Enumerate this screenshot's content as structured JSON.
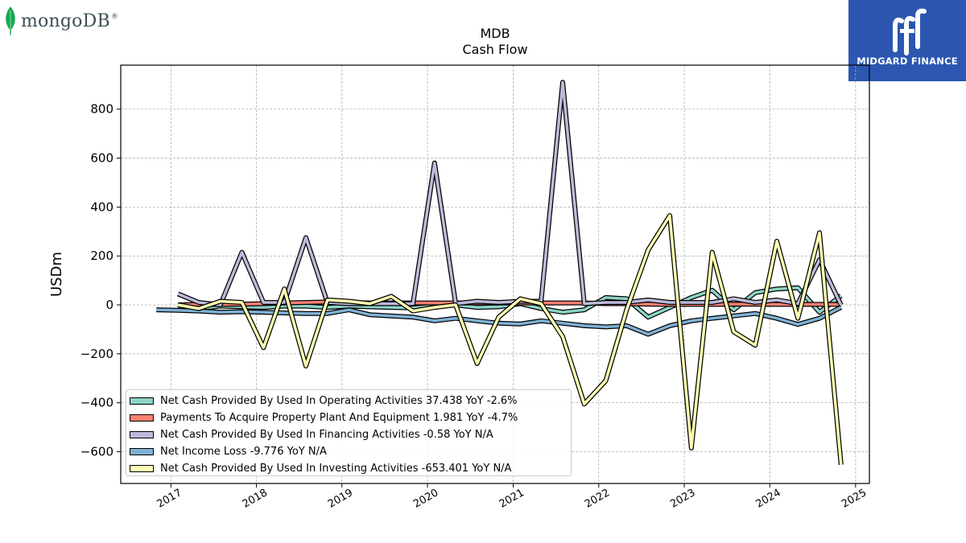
{
  "brand_left": {
    "wordmark": "mongoDB",
    "registered": "®",
    "icon": "leaf-icon",
    "icon_color": "#13aa52"
  },
  "brand_right": {
    "name": "MIDGARD FINANCE",
    "background": "#2b57b0"
  },
  "chart_data": {
    "type": "line",
    "title": "MDB",
    "subtitle": "Cash Flow",
    "xlabel": "",
    "ylabel": "USDm",
    "xlim": [
      "2016-06-01",
      "2025-03-01"
    ],
    "ylim": [
      -730,
      980
    ],
    "x_ticks": [
      "2017",
      "2018",
      "2019",
      "2020",
      "2021",
      "2022",
      "2023",
      "2024",
      "2025"
    ],
    "y_ticks": [
      -600,
      -400,
      -200,
      0,
      200,
      400,
      600,
      800
    ],
    "grid": true,
    "legend_position": "lower-left",
    "series": [
      {
        "name": "Net Cash Provided By Used In Operating Activities",
        "legend_text": "Net Cash Provided By Used In Operating Activities  37.438 YoY -2.6%",
        "color": "#8dd3c7",
        "points": [
          [
            "2017-01-31",
            -10
          ],
          [
            "2017-04-30",
            -15
          ],
          [
            "2017-07-31",
            -5
          ],
          [
            "2017-10-31",
            -8
          ],
          [
            "2018-01-31",
            -10
          ],
          [
            "2018-04-30",
            -5
          ],
          [
            "2018-07-31",
            -5
          ],
          [
            "2018-10-31",
            -10
          ],
          [
            "2019-01-31",
            -5
          ],
          [
            "2019-04-30",
            -8
          ],
          [
            "2019-07-31",
            -10
          ],
          [
            "2019-10-31",
            -12
          ],
          [
            "2020-01-31",
            -5
          ],
          [
            "2020-04-30",
            0
          ],
          [
            "2020-07-31",
            -10
          ],
          [
            "2020-10-31",
            -8
          ],
          [
            "2021-01-31",
            5
          ],
          [
            "2021-04-30",
            -15
          ],
          [
            "2021-07-31",
            -30
          ],
          [
            "2021-10-31",
            -20
          ],
          [
            "2022-01-31",
            30
          ],
          [
            "2022-04-30",
            25
          ],
          [
            "2022-07-31",
            -50
          ],
          [
            "2022-10-31",
            -10
          ],
          [
            "2023-01-31",
            30
          ],
          [
            "2023-04-30",
            60
          ],
          [
            "2023-07-31",
            -20
          ],
          [
            "2023-10-31",
            50
          ],
          [
            "2024-01-31",
            65
          ],
          [
            "2024-04-30",
            70
          ],
          [
            "2024-07-31",
            -30
          ],
          [
            "2024-10-31",
            37.4
          ]
        ]
      },
      {
        "name": "Payments To Acquire Property Plant And Equipment",
        "legend_text": "Payments To Acquire Property Plant And Equipment  1.981 YoY -4.7%",
        "color": "#fb8072",
        "points": [
          [
            "2017-01-31",
            0
          ],
          [
            "2017-04-30",
            2
          ],
          [
            "2017-07-31",
            2
          ],
          [
            "2017-10-31",
            3
          ],
          [
            "2018-01-31",
            5
          ],
          [
            "2018-04-30",
            8
          ],
          [
            "2018-07-31",
            10
          ],
          [
            "2018-10-31",
            12
          ],
          [
            "2019-01-31",
            10
          ],
          [
            "2019-04-30",
            8
          ],
          [
            "2019-07-31",
            8
          ],
          [
            "2019-10-31",
            8
          ],
          [
            "2020-01-31",
            8
          ],
          [
            "2020-04-30",
            8
          ],
          [
            "2020-07-31",
            8
          ],
          [
            "2020-10-31",
            8
          ],
          [
            "2021-01-31",
            8
          ],
          [
            "2021-04-30",
            8
          ],
          [
            "2021-07-31",
            8
          ],
          [
            "2021-10-31",
            8
          ],
          [
            "2022-01-31",
            5
          ],
          [
            "2022-04-30",
            5
          ],
          [
            "2022-07-31",
            3
          ],
          [
            "2022-10-31",
            2
          ],
          [
            "2023-01-31",
            2
          ],
          [
            "2023-04-30",
            2
          ],
          [
            "2023-07-31",
            3
          ],
          [
            "2023-10-31",
            3
          ],
          [
            "2024-01-31",
            2
          ],
          [
            "2024-04-30",
            2
          ],
          [
            "2024-07-31",
            2
          ],
          [
            "2024-10-31",
            2
          ]
        ]
      },
      {
        "name": "Net Cash Provided By Used In Financing Activities",
        "legend_text": "Net Cash Provided By Used In Financing Activities  -0.58 YoY N/A",
        "color": "#bebada",
        "points": [
          [
            "2017-01-31",
            45
          ],
          [
            "2017-04-30",
            10
          ],
          [
            "2017-07-31",
            0
          ],
          [
            "2017-10-31",
            215
          ],
          [
            "2018-01-31",
            10
          ],
          [
            "2018-04-30",
            10
          ],
          [
            "2018-07-31",
            275
          ],
          [
            "2018-10-31",
            10
          ],
          [
            "2019-01-31",
            5
          ],
          [
            "2019-04-30",
            5
          ],
          [
            "2019-07-31",
            5
          ],
          [
            "2019-10-31",
            5
          ],
          [
            "2020-01-31",
            580
          ],
          [
            "2020-04-30",
            5
          ],
          [
            "2020-07-31",
            15
          ],
          [
            "2020-10-31",
            10
          ],
          [
            "2021-01-31",
            15
          ],
          [
            "2021-04-30",
            15
          ],
          [
            "2021-07-31",
            910
          ],
          [
            "2021-10-31",
            5
          ],
          [
            "2022-01-31",
            10
          ],
          [
            "2022-04-30",
            10
          ],
          [
            "2022-07-31",
            20
          ],
          [
            "2022-10-31",
            10
          ],
          [
            "2023-01-31",
            10
          ],
          [
            "2023-04-30",
            10
          ],
          [
            "2023-07-31",
            25
          ],
          [
            "2023-10-31",
            10
          ],
          [
            "2024-01-31",
            20
          ],
          [
            "2024-04-30",
            5
          ],
          [
            "2024-07-31",
            185
          ],
          [
            "2024-10-31",
            -0.6
          ]
        ]
      },
      {
        "name": "Net Income Loss",
        "legend_text": "Net Income Loss  -9.776 YoY N/A",
        "color": "#80b1d3",
        "points": [
          [
            "2016-10-31",
            -20
          ],
          [
            "2017-01-31",
            -22
          ],
          [
            "2017-04-30",
            -25
          ],
          [
            "2017-07-31",
            -30
          ],
          [
            "2017-10-31",
            -28
          ],
          [
            "2018-01-31",
            -30
          ],
          [
            "2018-04-30",
            -33
          ],
          [
            "2018-07-31",
            -35
          ],
          [
            "2018-10-31",
            -35
          ],
          [
            "2019-01-31",
            -20
          ],
          [
            "2019-04-30",
            -40
          ],
          [
            "2019-07-31",
            -45
          ],
          [
            "2019-10-31",
            -50
          ],
          [
            "2020-01-31",
            -65
          ],
          [
            "2020-04-30",
            -55
          ],
          [
            "2020-07-31",
            -65
          ],
          [
            "2020-10-31",
            -75
          ],
          [
            "2021-01-31",
            -78
          ],
          [
            "2021-04-30",
            -65
          ],
          [
            "2021-07-31",
            -75
          ],
          [
            "2021-10-31",
            -85
          ],
          [
            "2022-01-31",
            -90
          ],
          [
            "2022-04-30",
            -85
          ],
          [
            "2022-07-31",
            -120
          ],
          [
            "2022-10-31",
            -85
          ],
          [
            "2023-01-31",
            -65
          ],
          [
            "2023-04-30",
            -55
          ],
          [
            "2023-07-31",
            -45
          ],
          [
            "2023-10-31",
            -35
          ],
          [
            "2024-01-31",
            -55
          ],
          [
            "2024-04-30",
            -80
          ],
          [
            "2024-07-31",
            -55
          ],
          [
            "2024-10-31",
            -9.8
          ]
        ]
      },
      {
        "name": "Net Cash Provided By Used In Investing Activities",
        "legend_text": "Net Cash Provided By Used In Investing Activities  -653.401 YoY N/A",
        "color": "#ffffb3",
        "points": [
          [
            "2017-01-31",
            0
          ],
          [
            "2017-04-30",
            -15
          ],
          [
            "2017-07-31",
            15
          ],
          [
            "2017-10-31",
            10
          ],
          [
            "2018-01-31",
            -175
          ],
          [
            "2018-04-30",
            65
          ],
          [
            "2018-07-31",
            -250
          ],
          [
            "2018-10-31",
            20
          ],
          [
            "2019-01-31",
            15
          ],
          [
            "2019-04-30",
            5
          ],
          [
            "2019-07-31",
            35
          ],
          [
            "2019-10-31",
            -25
          ],
          [
            "2020-01-31",
            -10
          ],
          [
            "2020-04-30",
            0
          ],
          [
            "2020-07-31",
            -240
          ],
          [
            "2020-10-31",
            -50
          ],
          [
            "2021-01-31",
            25
          ],
          [
            "2021-04-30",
            5
          ],
          [
            "2021-07-31",
            -130
          ],
          [
            "2021-10-31",
            -405
          ],
          [
            "2022-01-31",
            -310
          ],
          [
            "2022-04-30",
            -20
          ],
          [
            "2022-07-31",
            225
          ],
          [
            "2022-10-31",
            365
          ],
          [
            "2023-01-31",
            -585
          ],
          [
            "2023-04-30",
            215
          ],
          [
            "2023-07-31",
            -110
          ],
          [
            "2023-10-31",
            -165
          ],
          [
            "2024-01-31",
            260
          ],
          [
            "2024-04-30",
            -55
          ],
          [
            "2024-07-31",
            295
          ],
          [
            "2024-10-31",
            -653.4
          ]
        ]
      }
    ]
  }
}
